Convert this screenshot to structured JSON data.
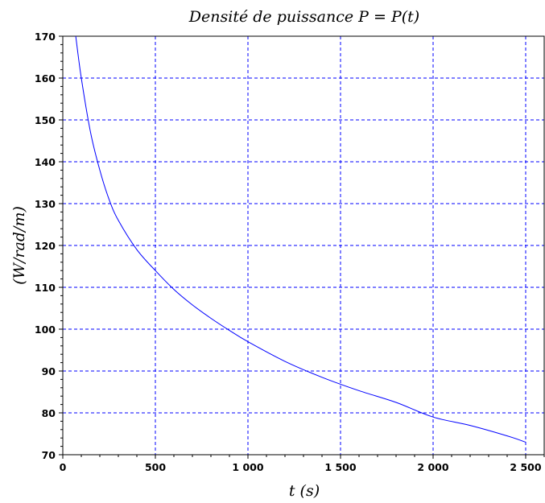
{
  "chart_data": {
    "type": "line",
    "title": "Densité de puissance P = P(t)",
    "xlabel": "t (s)",
    "ylabel": "(W/rad/m)",
    "xlim": [
      0,
      2600
    ],
    "ylim": [
      70,
      170
    ],
    "x_ticks": [
      0,
      500,
      1000,
      1500,
      2000,
      2500
    ],
    "x_tick_labels": [
      "0",
      "500",
      "1 000",
      "1 500",
      "2 000",
      "2 500"
    ],
    "y_ticks": [
      70,
      80,
      90,
      100,
      110,
      120,
      130,
      140,
      150,
      160,
      170
    ],
    "y_tick_labels": [
      "70",
      "80",
      "90",
      "100",
      "110",
      "120",
      "130",
      "140",
      "150",
      "160",
      "170"
    ],
    "grid": true,
    "colors": {
      "series": "#0000ff",
      "grid": "#0000ff",
      "frame": "#000000"
    },
    "series": [
      {
        "x": [
          70,
          100,
          150,
          200,
          250,
          300,
          400,
          500,
          600,
          700,
          800,
          900,
          1000,
          1200,
          1400,
          1600,
          1800,
          2000,
          2200,
          2400,
          2500
        ],
        "values": [
          170,
          160,
          147,
          138,
          131,
          126,
          119,
          114,
          109.5,
          105.8,
          102.6,
          99.7,
          97,
          92.3,
          88.5,
          85.3,
          82.5,
          79,
          77,
          74.5,
          73
        ]
      }
    ]
  }
}
